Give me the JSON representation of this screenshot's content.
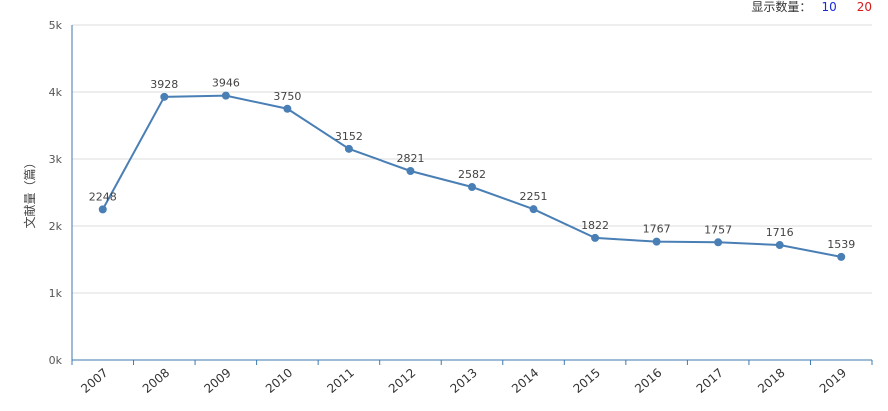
{
  "controls": {
    "label": "显示数量：",
    "option_10": "10",
    "option_20": "20"
  },
  "chart_data": {
    "type": "line",
    "categories": [
      "2007",
      "2008",
      "2009",
      "2010",
      "2011",
      "2012",
      "2013",
      "2014",
      "2015",
      "2016",
      "2017",
      "2018",
      "2019"
    ],
    "series": [
      {
        "values": [
          2248,
          3928,
          3946,
          3750,
          3152,
          2821,
          2582,
          2251,
          1822,
          1767,
          1757,
          1716,
          1539
        ]
      }
    ],
    "ylabel": "文献量（篇）",
    "ylim": [
      0,
      5000
    ],
    "yticks": [
      "0k",
      "1k",
      "2k",
      "3k",
      "4k",
      "5k"
    ],
    "grid": true,
    "colors": {
      "line": "#4a7fb5",
      "axis": "#3d7ab0",
      "grid": "#dddddd"
    }
  }
}
